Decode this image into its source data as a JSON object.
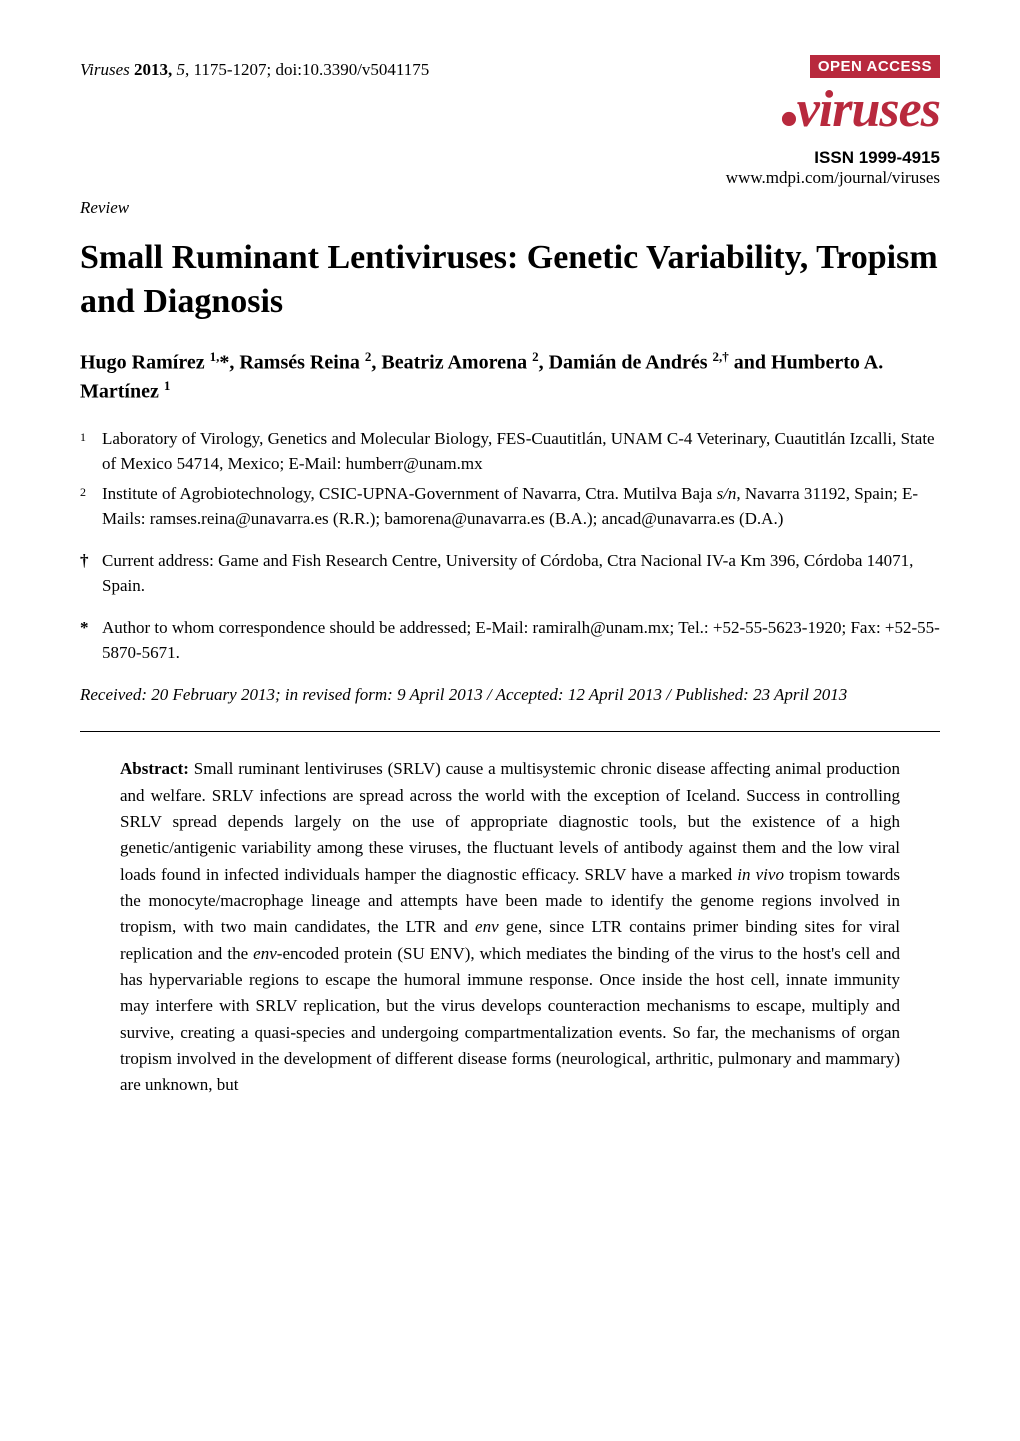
{
  "header": {
    "journal_name": "Viruses",
    "year": "2013",
    "volume": "5",
    "pages": "1175-1207",
    "doi": "doi:10.3390/v5041175",
    "open_access": "OPEN ACCESS",
    "logo_text": "viruses",
    "issn_label": "ISSN 1999-4915",
    "url": "www.mdpi.com/journal/viruses",
    "badge_bg": "#b8293d",
    "badge_fg": "#ffffff",
    "logo_color": "#b8293d"
  },
  "article": {
    "type_label": "Review",
    "title": "Small Ruminant Lentiviruses: Genetic Variability, Tropism and Diagnosis",
    "authors_html": "Hugo Ramírez <sup>1,</sup>*, Ramsés Reina <sup>2</sup>, Beatriz Amorena <sup>2</sup>, Damián de Andrés <sup>2,†</sup> and Humberto A. Martínez <sup>1</sup>"
  },
  "affiliations": [
    {
      "marker": "1",
      "text": "Laboratory of Virology, Genetics and Molecular Biology, FES-Cuautitlán, UNAM C-4 Veterinary, Cuautitlán Izcalli, State of Mexico 54714, Mexico; E-Mail: humberr@unam.mx"
    },
    {
      "marker": "2",
      "text_html": "Institute of Agrobiotechnology, CSIC-UPNA-Government of Navarra, Ctra. Mutilva Baja <span class=\"italic\">s/n</span>, Navarra 31192, Spain; E-Mails: ramses.reina@unavarra.es (R.R.); bamorena@unavarra.es (B.A.); ancad@unavarra.es (D.A.)"
    }
  ],
  "notes": [
    {
      "marker": "†",
      "text": "Current address: Game and Fish Research Centre, University of Córdoba, Ctra Nacional IV-a Km 396, Córdoba 14071, Spain."
    },
    {
      "marker": "*",
      "text": "Author to whom correspondence should be addressed; E-Mail: ramiralh@unam.mx; Tel.: +52-55-5623-1920; Fax: +52-55-5870-5671."
    }
  ],
  "dates": "Received: 20 February 2013; in revised form: 9 April 2013 / Accepted: 12 April 2013 / Published: 23 April 2013",
  "abstract": {
    "label": "Abstract:",
    "text_html": "Small ruminant lentiviruses (SRLV) cause a multisystemic chronic disease affecting animal production and welfare. SRLV infections are spread across the world with the exception of Iceland. Success in controlling SRLV spread depends largely on the use of appropriate diagnostic tools, but the existence of a high genetic/antigenic variability among these viruses, the fluctuant levels of antibody against them and the low viral loads found in infected individuals hamper the diagnostic efficacy. SRLV have a marked <span class=\"italic\">in vivo</span> tropism towards the monocyte/macrophage lineage and attempts have been made to identify the genome regions involved in tropism, with two main candidates, the LTR and <span class=\"italic\">env</span> gene, since LTR contains primer binding sites for viral replication and the <span class=\"italic\">env-</span>encoded protein (SU ENV), which mediates the binding of the virus to the host's cell and has hypervariable regions to escape the humoral immune response. Once inside the host cell, innate immunity may interfere with SRLV replication, but the virus develops counteraction mechanisms to escape, multiply and survive, creating a quasi-species and undergoing compartmentalization events. So far, the mechanisms of organ tropism involved in the development of different disease forms (neurological, arthritic, pulmonary and mammary) are unknown, but"
  },
  "styles": {
    "body_font": "Times New Roman",
    "body_color": "#000000",
    "bg_color": "#ffffff",
    "title_fontsize": 34,
    "body_fontsize": 17,
    "authors_fontsize": 20,
    "logo_fontsize": 52
  }
}
